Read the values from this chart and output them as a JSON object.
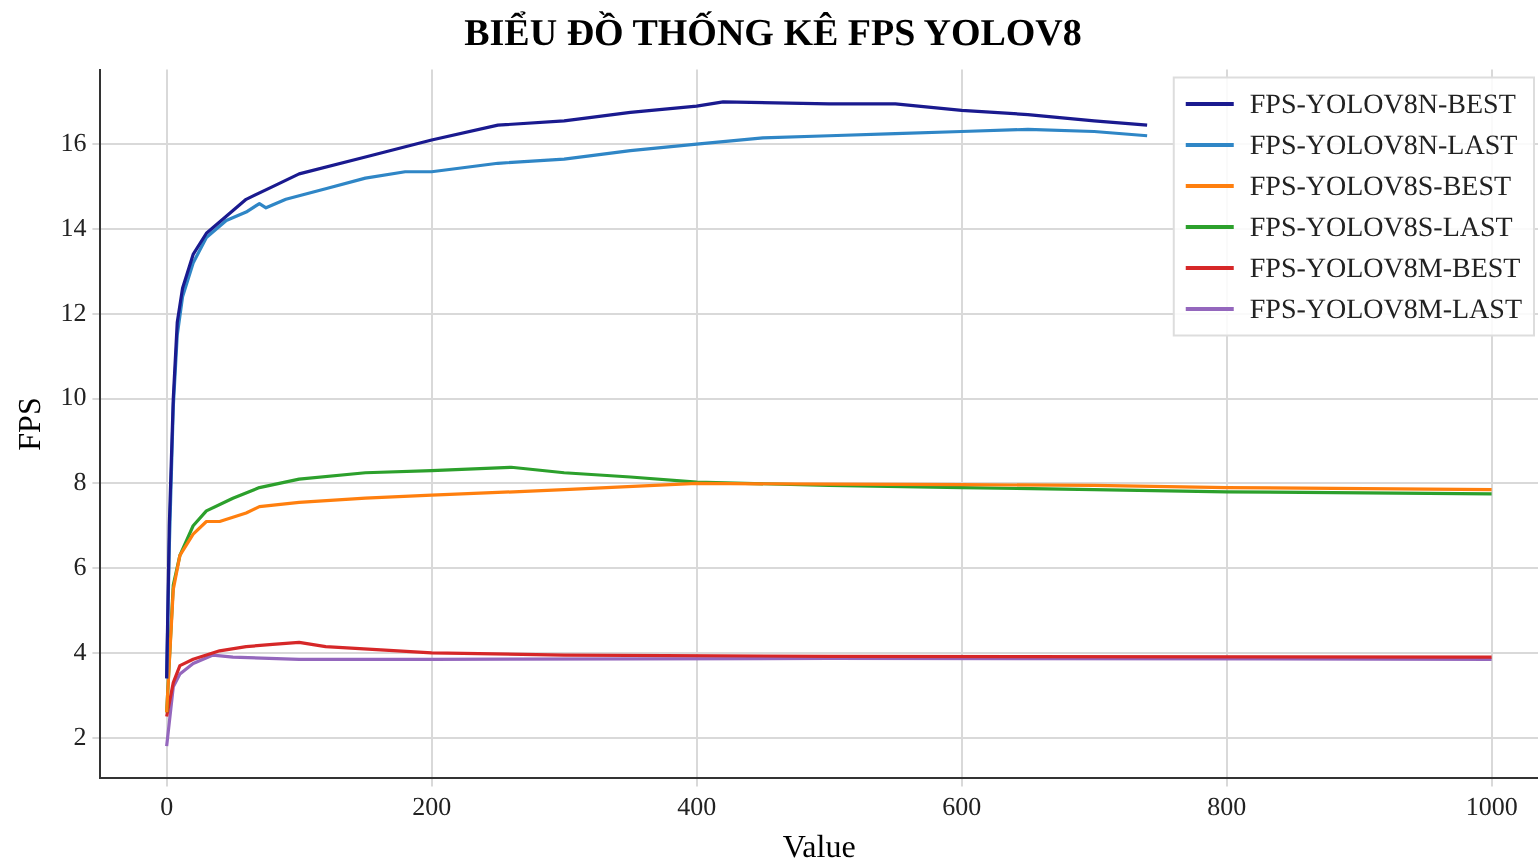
{
  "chart_data": {
    "type": "line",
    "title": "BIỂU ĐỒ THỐNG KÊ FPS YOLOV8",
    "xlabel": "Value",
    "ylabel": "FPS",
    "xlim": [
      -50,
      1035
    ],
    "ylim": [
      1.04,
      17.76
    ],
    "xticks": [
      0,
      200,
      400,
      600,
      800,
      1000
    ],
    "yticks": [
      2,
      4,
      6,
      8,
      10,
      12,
      14,
      16
    ],
    "grid": true,
    "legend": "top right",
    "marker": "none",
    "line_style": "solid",
    "series": [
      {
        "name": "FPS-YOLOV8N-BEST",
        "color": "#1a1a8f",
        "x": [
          0,
          2,
          5,
          8,
          12,
          20,
          30,
          45,
          60,
          80,
          100,
          150,
          200,
          250,
          300,
          350,
          400,
          420,
          500,
          550,
          600,
          650,
          700,
          740
        ],
        "values": [
          3.4,
          7,
          10,
          11.8,
          12.6,
          13.4,
          13.9,
          14.3,
          14.7,
          15.0,
          15.3,
          15.7,
          16.1,
          16.45,
          16.55,
          16.75,
          16.9,
          17.0,
          16.95,
          16.95,
          16.8,
          16.7,
          16.55,
          16.45
        ]
      },
      {
        "name": "FPS-YOLOV8N-LAST",
        "color": "#2f86c6",
        "x": [
          0,
          2,
          5,
          8,
          12,
          20,
          30,
          45,
          60,
          70,
          75,
          90,
          120,
          150,
          180,
          200,
          250,
          300,
          350,
          400,
          450,
          500,
          550,
          600,
          650,
          700,
          740
        ],
        "values": [
          3.4,
          6.5,
          9.8,
          11.5,
          12.4,
          13.2,
          13.8,
          14.2,
          14.4,
          14.6,
          14.5,
          14.7,
          14.95,
          15.2,
          15.35,
          15.35,
          15.55,
          15.65,
          15.85,
          16.0,
          16.15,
          16.2,
          16.25,
          16.3,
          16.35,
          16.3,
          16.2
        ]
      },
      {
        "name": "FPS-YOLOV8S-BEST",
        "color": "#ff7f0e",
        "x": [
          0,
          5,
          10,
          20,
          30,
          40,
          60,
          70,
          100,
          150,
          200,
          300,
          400,
          500,
          600,
          700,
          800,
          1000
        ],
        "values": [
          2.6,
          5.5,
          6.3,
          6.8,
          7.1,
          7.1,
          7.3,
          7.45,
          7.55,
          7.65,
          7.72,
          7.85,
          8.0,
          7.98,
          7.97,
          7.95,
          7.9,
          7.85
        ]
      },
      {
        "name": "FPS-YOLOV8S-LAST",
        "color": "#2ca02c",
        "x": [
          0,
          5,
          10,
          20,
          30,
          50,
          70,
          100,
          150,
          200,
          260,
          300,
          350,
          400,
          500,
          600,
          700,
          800,
          1000
        ],
        "values": [
          2.6,
          5.6,
          6.3,
          7.0,
          7.35,
          7.65,
          7.9,
          8.1,
          8.25,
          8.3,
          8.38,
          8.25,
          8.15,
          8.03,
          7.95,
          7.9,
          7.85,
          7.8,
          7.75
        ]
      },
      {
        "name": "FPS-YOLOV8M-BEST",
        "color": "#d62728",
        "x": [
          0,
          5,
          10,
          20,
          40,
          60,
          80,
          100,
          120,
          200,
          300,
          500,
          1000
        ],
        "values": [
          2.5,
          3.3,
          3.7,
          3.85,
          4.05,
          4.15,
          4.2,
          4.25,
          4.15,
          4.0,
          3.95,
          3.92,
          3.9
        ]
      },
      {
        "name": "FPS-YOLOV8M-LAST",
        "color": "#9467bd",
        "x": [
          0,
          5,
          10,
          20,
          35,
          50,
          100,
          200,
          500,
          1000
        ],
        "values": [
          1.8,
          3.2,
          3.5,
          3.75,
          3.95,
          3.9,
          3.85,
          3.85,
          3.87,
          3.85
        ]
      }
    ]
  }
}
